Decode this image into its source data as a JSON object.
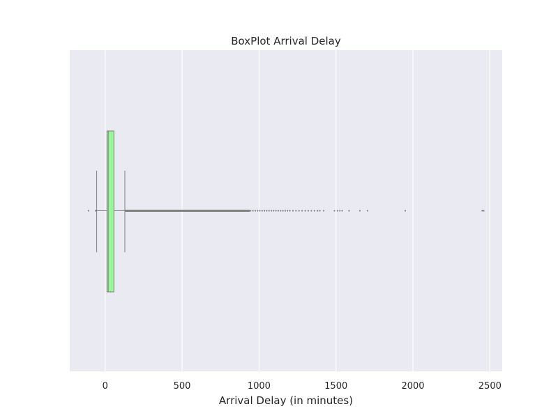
{
  "chart_data": {
    "type": "box",
    "title": "BoxPlot Arrival Delay",
    "xlabel": "Arrival Delay (in minutes)",
    "ylabel": "",
    "orientation": "horizontal",
    "xlim": [
      -230,
      2580
    ],
    "x_ticks": [
      0,
      500,
      1000,
      1500,
      2000,
      2500
    ],
    "x_tick_labels": [
      "0",
      "500",
      "1000",
      "1500",
      "2000",
      "2500"
    ],
    "grid": true,
    "box": {
      "whisker_low": -55,
      "q1": 12,
      "median": 20,
      "q3": 57,
      "whisker_high": 128
    },
    "fliers_dense_range": [
      128,
      940
    ],
    "fliers": [
      -108,
      -62,
      -58,
      945,
      960,
      975,
      990,
      1005,
      1020,
      1035,
      1050,
      1065,
      1080,
      1095,
      1110,
      1125,
      1140,
      1155,
      1170,
      1185,
      1200,
      1220,
      1240,
      1260,
      1280,
      1300,
      1320,
      1340,
      1360,
      1380,
      1395,
      1420,
      1490,
      1510,
      1525,
      1540,
      1585,
      1655,
      1705,
      1950,
      2450,
      2460
    ],
    "colors": {
      "box_fill": "#98f598",
      "line": "#808080",
      "background": "#eaeaf2",
      "grid": "#ffffff"
    }
  }
}
